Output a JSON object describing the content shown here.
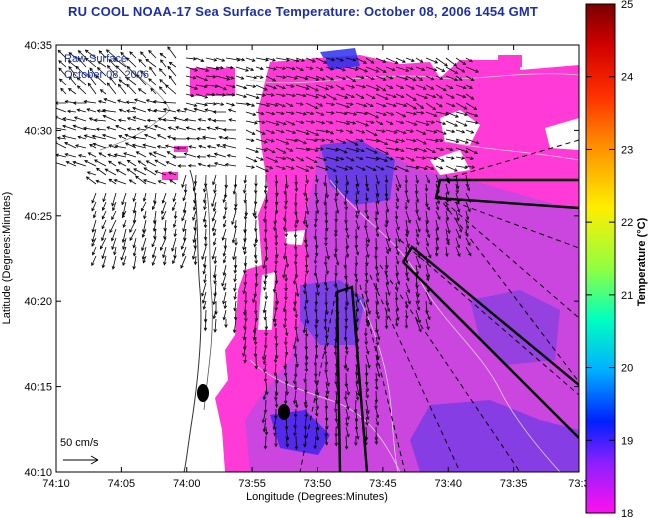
{
  "title": "RU COOL  NOAA-17  Sea Surface Temperature:  October 08, 2006 1454 GMT",
  "overlay_text": {
    "line1": "Raw Surface",
    "line2": "October 08, 2006"
  },
  "xaxis": {
    "label": "Longitude (Degrees:Minutes)",
    "ticks": [
      "74:10",
      "74:05",
      "74:00",
      "73:55",
      "73:50",
      "73:45",
      "73:40",
      "73:35",
      "73:3"
    ]
  },
  "yaxis": {
    "label": "Latitude (Degrees:Minutes)",
    "ticks": [
      "40:35",
      "40:30",
      "40:25",
      "40:20",
      "40:15",
      "40:10"
    ]
  },
  "colorbar": {
    "label": "Temperature (°C)",
    "ticks": [
      "25",
      "24",
      "23",
      "22",
      "21",
      "20",
      "19",
      "18"
    ],
    "colors": [
      "#8b0000",
      "#ff1a00",
      "#ffa500",
      "#ffff00",
      "#00ffb0",
      "#00c8ff",
      "#0010ff",
      "#ff00ff"
    ]
  },
  "scale": {
    "label": "50 cm/s"
  },
  "colors": {
    "land": "#ffffff",
    "water_magenta": "#ff3ad6",
    "water_purple": "#c040e0",
    "water_blue": "#5a3ae8",
    "title": "#1a2fa8"
  }
}
